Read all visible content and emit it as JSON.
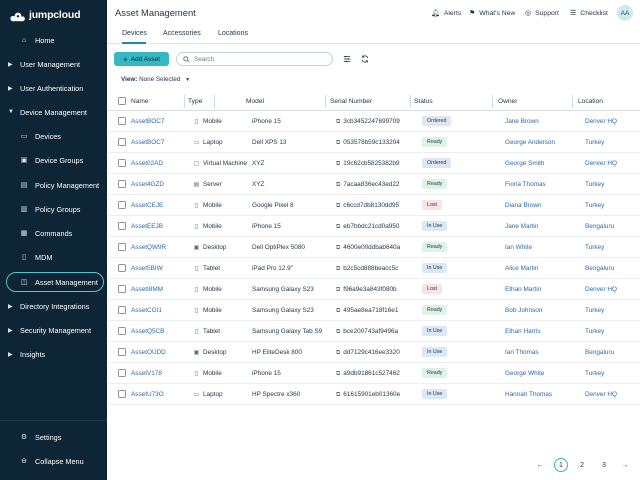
{
  "brand": {
    "name": "jumpcloud"
  },
  "sidebar": {
    "items": [
      {
        "label": "Home",
        "icon": "home-icon",
        "kind": "item"
      },
      {
        "label": "User Management",
        "icon": "caret",
        "kind": "group"
      },
      {
        "label": "User Authentication",
        "icon": "caret",
        "kind": "group"
      },
      {
        "label": "Device Management",
        "icon": "caret-down",
        "kind": "group"
      },
      {
        "label": "Devices",
        "icon": "devices-icon",
        "kind": "sub"
      },
      {
        "label": "Device Groups",
        "icon": "device-groups-icon",
        "kind": "sub"
      },
      {
        "label": "Policy Management",
        "icon": "policy-icon",
        "kind": "sub"
      },
      {
        "label": "Policy Groups",
        "icon": "policy-groups-icon",
        "kind": "sub"
      },
      {
        "label": "Commands",
        "icon": "commands-icon",
        "kind": "sub"
      },
      {
        "label": "MDM",
        "icon": "mdm-icon",
        "kind": "sub"
      },
      {
        "label": "Asset Management",
        "icon": "asset-icon",
        "kind": "sub",
        "active": true
      },
      {
        "label": "Directory Integrations",
        "icon": "caret",
        "kind": "group"
      },
      {
        "label": "Security Management",
        "icon": "caret",
        "kind": "group"
      },
      {
        "label": "Insights",
        "icon": "caret",
        "kind": "group"
      }
    ],
    "settings_label": "Settings",
    "collapse_label": "Collapse Menu"
  },
  "header": {
    "title": "Asset Management",
    "alerts_label": "Alerts",
    "whats_new_label": "What's New",
    "support_label": "Support",
    "checklist_label": "Checklist",
    "avatar_initials": "AA"
  },
  "tabs": [
    {
      "label": "Devices",
      "active": true
    },
    {
      "label": "Accessories",
      "active": false
    },
    {
      "label": "Locations",
      "active": false
    }
  ],
  "toolbar": {
    "add_label": "Add Asset",
    "search_placeholder": "Search",
    "view_prefix": "View:",
    "view_value": "None Selected"
  },
  "table": {
    "columns": [
      "Name",
      "Type",
      "Model",
      "Serial Number",
      "Status",
      "Owner",
      "Location"
    ],
    "rows": [
      {
        "name": "AssetBOC7",
        "type": "Mobile",
        "model": "iPhone 15",
        "serial": "3cb3452247699709",
        "status": "Ordered",
        "owner": "Jane Brown",
        "location": "Denver HQ"
      },
      {
        "name": "AssetBOC7",
        "type": "Laptop",
        "model": "Dell XPS 13",
        "serial": "053578b59c133204",
        "status": "Ready",
        "owner": "George Anderson",
        "location": "Turkey"
      },
      {
        "name": "Asset02AD",
        "type": "Virtual Machine",
        "model": "XYZ",
        "serial": "19c62cb5825382b9",
        "status": "Ordered",
        "owner": "George Smith",
        "location": "Denver HQ"
      },
      {
        "name": "Asset4GZD",
        "type": "Server",
        "model": "XYZ",
        "serial": "7acaa836ec43ed22",
        "status": "Ready",
        "owner": "Fiona Thomas",
        "location": "Turkey"
      },
      {
        "name": "AssetCEJE",
        "type": "Mobile",
        "model": "Google Pixel 8",
        "serial": "c6ccd7db8130dd95",
        "status": "Lost",
        "owner": "Diana Brown",
        "location": "Turkey"
      },
      {
        "name": "AssetEEJB",
        "type": "Mobile",
        "model": "iPhone 15",
        "serial": "eb7bbdc21cd0a950",
        "status": "In Use",
        "owner": "Jane Martin",
        "location": "Bengaluru"
      },
      {
        "name": "AssetQW9R",
        "type": "Desktop",
        "model": "Dell OptiPlex 5080",
        "serial": "4600e00ddbab640a",
        "status": "Ready",
        "owner": "Ian White",
        "location": "Turkey"
      },
      {
        "name": "Asset5BIW",
        "type": "Tablet",
        "model": "iPad Pro 12.9\"",
        "serial": "b2c5cd888beacc5c",
        "status": "In Use",
        "owner": "Alice Martin",
        "location": "Bengaluru"
      },
      {
        "name": "AssetI8MM",
        "type": "Mobile",
        "model": "Samsung Galaxy S23",
        "serial": "f96a9e3a843f080b",
        "status": "Lost",
        "owner": "Ethan Martin",
        "location": "Denver HQ"
      },
      {
        "name": "AssetCGI1",
        "type": "Mobile",
        "model": "Samsung Galaxy S23",
        "serial": "495ae8ea718f16e1",
        "status": "Ready",
        "owner": "Bob Johnson",
        "location": "Turkey"
      },
      {
        "name": "AssetQ5CB",
        "type": "Tablet",
        "model": "Samsung Galaxy Tab S9",
        "serial": "bce200743af9496a",
        "status": "In Use",
        "owner": "Ethan Harris",
        "location": "Turkey"
      },
      {
        "name": "AssetOUDD",
        "type": "Desktop",
        "model": "HP EliteDesk 800",
        "serial": "dd7129c416ee3320",
        "status": "In Use",
        "owner": "Ian Thomas",
        "location": "Bengaluru"
      },
      {
        "name": "AssetV178",
        "type": "Mobile",
        "model": "iPhone 15",
        "serial": "a9db91861c527462",
        "status": "Ready",
        "owner": "George White",
        "location": "Turkey"
      },
      {
        "name": "AssetU73O",
        "type": "Laptop",
        "model": "HP Spectre x360",
        "serial": "61615901eb01360e",
        "status": "In Use",
        "owner": "Hannah Thomas",
        "location": "Denver HQ"
      }
    ]
  },
  "status_colors": {
    "Ordered": "#dfe6f3",
    "Ready": "#def3e6",
    "Lost": "#fbe3e4",
    "In Use": "#dce7f7"
  },
  "pagination": {
    "pages": [
      "1",
      "2",
      "3"
    ],
    "current": "1"
  }
}
